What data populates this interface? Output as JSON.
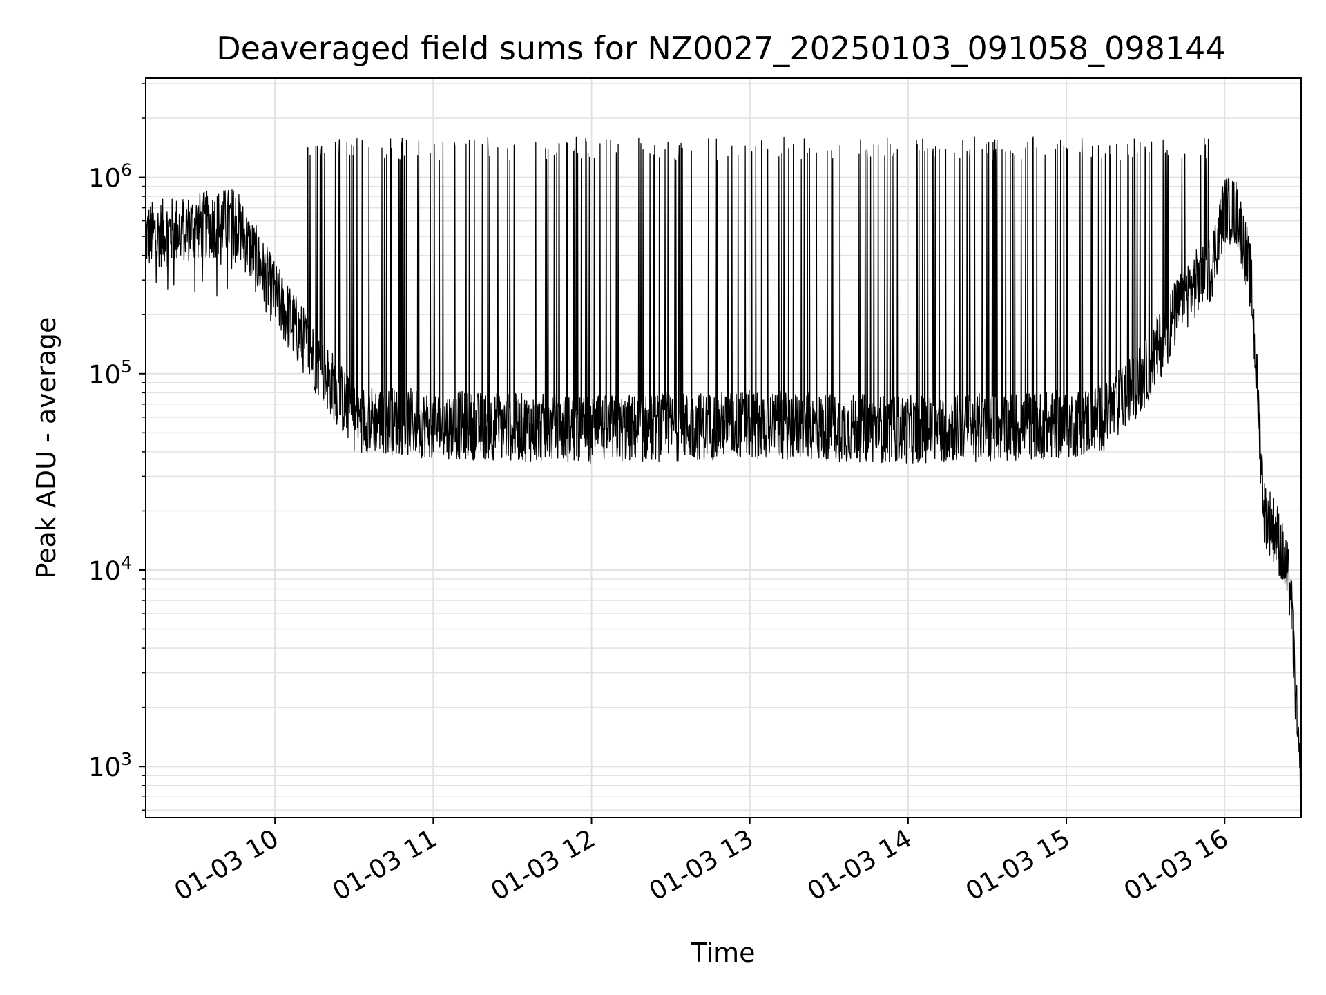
{
  "chart_data": {
    "type": "line",
    "title": "Deaveraged field sums for NZ0027_20250103_091058_098144",
    "xlabel": "Time",
    "ylabel": "Peak ADU - average",
    "y_scale": "log",
    "ylim": [
      550,
      3200000
    ],
    "x_range_hours": [
      "2025-01-03 09:11",
      "2025-01-03 16:29"
    ],
    "grid": true,
    "x_ticks": [
      {
        "label": "01-03 10"
      },
      {
        "label": "01-03 11"
      },
      {
        "label": "01-03 12"
      },
      {
        "label": "01-03 13"
      },
      {
        "label": "01-03 14"
      },
      {
        "label": "01-03 15"
      },
      {
        "label": "01-03 16"
      }
    ],
    "y_ticks": [
      {
        "base": "10",
        "exp": "3",
        "value": 1000
      },
      {
        "base": "10",
        "exp": "4",
        "value": 10000
      },
      {
        "base": "10",
        "exp": "5",
        "value": 100000
      },
      {
        "base": "10",
        "exp": "6",
        "value": 1000000
      }
    ],
    "series": [
      {
        "line_color": "#000000",
        "x": [
          "09:11",
          "09:30",
          "09:45",
          "09:50",
          "10:00",
          "10:15",
          "10:30",
          "11:00",
          "12:00",
          "13:00",
          "14:00",
          "15:00",
          "15:15",
          "15:30",
          "15:45",
          "15:55",
          "16:00",
          "16:05",
          "16:10",
          "16:15",
          "16:20",
          "16:25",
          "16:29"
        ],
        "y": [
          500000,
          560000,
          600000,
          450000,
          250000,
          120000,
          60000,
          55000,
          52000,
          55000,
          52000,
          55000,
          60000,
          100000,
          250000,
          350000,
          700000,
          650000,
          300000,
          20000,
          15000,
          8000,
          600
        ],
        "spike_peak_typical": 1400000,
        "noise_floor_typical": 40000
      }
    ]
  }
}
